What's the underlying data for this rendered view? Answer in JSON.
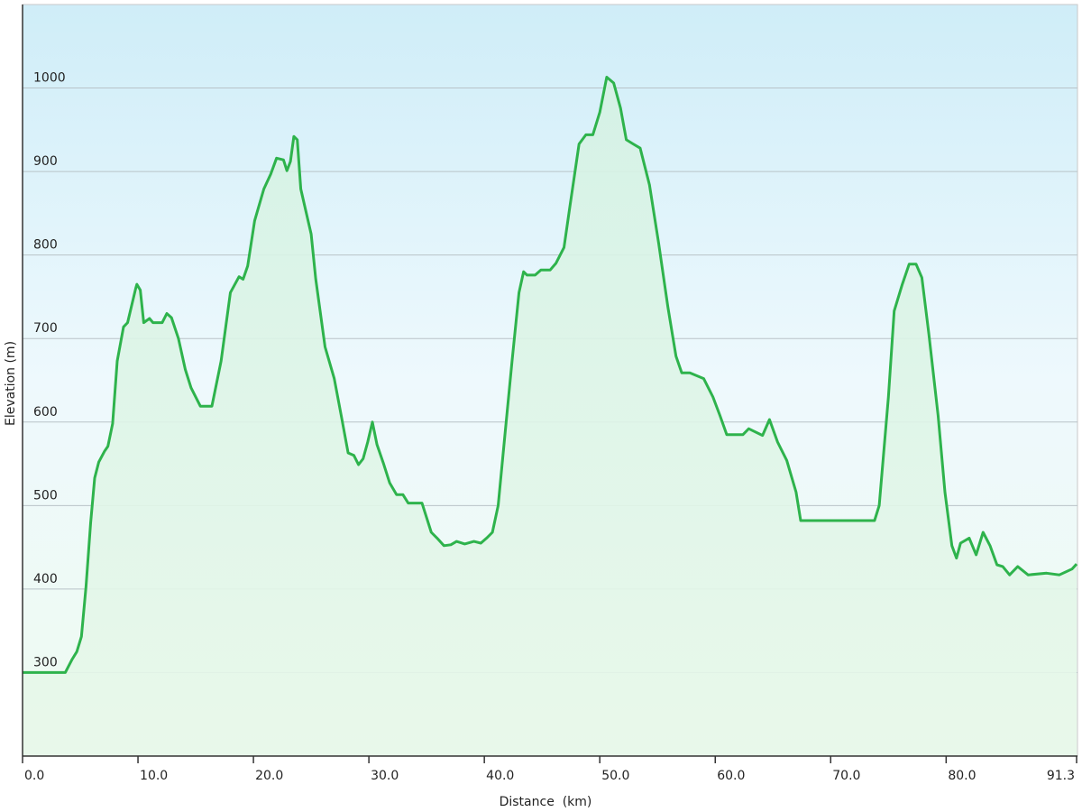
{
  "chart_data": {
    "type": "area",
    "x_label": "Distance  (km)",
    "y_label": "Elevation (m)",
    "xlim": [
      0,
      91.3
    ],
    "ylim": [
      200,
      1100
    ],
    "xticks": [
      {
        "value": 0,
        "label": "0.0"
      },
      {
        "value": 10,
        "label": "10.0"
      },
      {
        "value": 20,
        "label": "20.0"
      },
      {
        "value": 30,
        "label": "30.0"
      },
      {
        "value": 40,
        "label": "40.0"
      },
      {
        "value": 50,
        "label": "50.0"
      },
      {
        "value": 60,
        "label": "60.0"
      },
      {
        "value": 70,
        "label": "70.0"
      },
      {
        "value": 80,
        "label": "80.0"
      },
      91.3
    ],
    "yticks": [
      300,
      400,
      500,
      600,
      700,
      800,
      900,
      1000
    ],
    "grid": true,
    "color": "#2eb34c",
    "x": [
      0,
      3.7,
      4.3,
      4.7,
      5.1,
      5.5,
      5.9,
      6.25,
      6.6,
      7.1,
      7.4,
      7.8,
      8.2,
      8.75,
      9.1,
      9.8,
      9.9,
      10.2,
      10.5,
      11.0,
      11.3,
      12.1,
      12.5,
      12.9,
      13.5,
      14.1,
      14.6,
      15.4,
      16.4,
      17.2,
      18.0,
      18.75,
      19.1,
      19.5,
      20.1,
      20.9,
      21.5,
      22.0,
      22.6,
      22.9,
      23.2,
      23.5,
      23.8,
      24.1,
      25.0,
      25.4,
      26.2,
      27.0,
      27.6,
      28.2,
      28.7,
      29.1,
      29.5,
      29.9,
      30.3,
      30.7,
      31.25,
      31.8,
      32.4,
      32.95,
      33.4,
      34.6,
      35.4,
      35.9,
      36.5,
      37.1,
      37.6,
      38.3,
      39.1,
      39.7,
      40.2,
      40.7,
      41.2,
      41.8,
      42.4,
      43.0,
      43.4,
      43.7,
      44.4,
      44.9,
      45.7,
      46.2,
      46.9,
      47.4,
      48.2,
      48.8,
      49.4,
      50.0,
      50.6,
      51.2,
      51.8,
      52.3,
      52.9,
      53.5,
      54.3,
      55.1,
      55.9,
      56.6,
      57.1,
      57.8,
      59.0,
      59.8,
      60.4,
      61.0,
      62.4,
      62.9,
      64.1,
      64.7,
      65.4,
      66.2,
      67.0,
      67.4,
      73.8,
      74.2,
      75.0,
      75.5,
      76.2,
      76.8,
      77.4,
      77.9,
      78.5,
      79.3,
      79.9,
      80.5,
      80.9,
      81.25,
      82.0,
      82.6,
      83.2,
      83.8,
      84.4,
      84.9,
      85.5,
      86.2,
      87.1,
      88.7,
      89.8,
      90.9,
      91.3
    ],
    "values": [
      300,
      300,
      316,
      325,
      343,
      403,
      479,
      533,
      552,
      565,
      571,
      598,
      673,
      714,
      719,
      760,
      765,
      758,
      719,
      724,
      719,
      719,
      730,
      725,
      700,
      663,
      641,
      619,
      619,
      673,
      755,
      774,
      771,
      787,
      841,
      879,
      897,
      916,
      914,
      901,
      912,
      942,
      938,
      879,
      825,
      771,
      690,
      652,
      608,
      563,
      560,
      549,
      556,
      576,
      600,
      573,
      551,
      527,
      513,
      513,
      503,
      503,
      468,
      461,
      452,
      453,
      457,
      454,
      457,
      455,
      461,
      468,
      500,
      587,
      673,
      755,
      780,
      776,
      776,
      782,
      782,
      790,
      809,
      857,
      933,
      944,
      944,
      971,
      1013,
      1006,
      976,
      938,
      933,
      928,
      884,
      814,
      738,
      679,
      659,
      659,
      652,
      630,
      608,
      585,
      585,
      592,
      584,
      603,
      576,
      554,
      516,
      482,
      482,
      500,
      630,
      733,
      765,
      789,
      789,
      773,
      706,
      608,
      516,
      452,
      437,
      455,
      461,
      441,
      468,
      452,
      429,
      427,
      417,
      427,
      417,
      419,
      417,
      424,
      430
    ]
  }
}
